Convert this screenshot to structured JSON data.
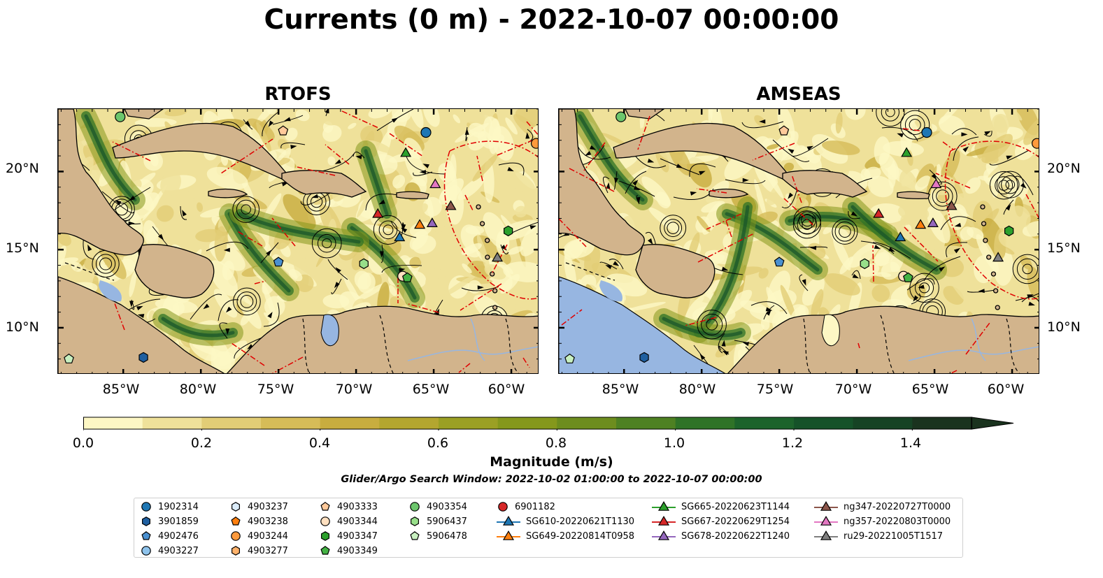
{
  "title": "Currents (0 m) - 2022-10-07 00:00:00",
  "panels": [
    {
      "title": "RTOFS"
    },
    {
      "title": "AMSEAS"
    }
  ],
  "axes": {
    "longitude_ticks": [
      "85°W",
      "80°W",
      "75°W",
      "70°W",
      "65°W",
      "60°W"
    ],
    "latitude_ticks": [
      "20°N",
      "15°N",
      "10°N"
    ]
  },
  "colorbar": {
    "label": "Magnitude (m/s)",
    "ticks": [
      "0.0",
      "0.2",
      "0.4",
      "0.6",
      "0.8",
      "1.0",
      "1.2",
      "1.4"
    ],
    "range": [
      0.0,
      1.5
    ],
    "step": 0.1,
    "extend": "max",
    "colors": [
      "#fdf7c4",
      "#efe19a",
      "#e2cd76",
      "#d6bc58",
      "#c8ad3f",
      "#b4a62f",
      "#9ba024",
      "#85981c",
      "#6d8d1e",
      "#4e8122",
      "#2f7327",
      "#1c632b",
      "#155229",
      "#164324",
      "#1a331e"
    ]
  },
  "search_window": "Glider/Argo Search Window: 2022-10-02 01:00:00 to 2022-10-07 00:00:00",
  "colors": {
    "land": "#d2b48c",
    "lake": "#97b6e1",
    "eez_boundary": "#e00000",
    "streamline": "#000000"
  },
  "legend": {
    "columns": [
      [
        {
          "label": "1902314",
          "marker": "circle",
          "color": "#1f77b4"
        },
        {
          "label": "3901859",
          "marker": "hexagon",
          "color": "#1f5fa0"
        },
        {
          "label": "4902476",
          "marker": "pentagon",
          "color": "#4a90d0"
        },
        {
          "label": "4903227",
          "marker": "circle",
          "color": "#8ec3ec"
        }
      ],
      [
        {
          "label": "4903237",
          "marker": "hexagon",
          "color": "#dbecfa"
        },
        {
          "label": "4903238",
          "marker": "pentagon",
          "color": "#ff7f0e"
        },
        {
          "label": "4903244",
          "marker": "circle",
          "color": "#ff9a3c"
        },
        {
          "label": "4903277",
          "marker": "hexagon",
          "color": "#ffb26b"
        }
      ],
      [
        {
          "label": "4903333",
          "marker": "pentagon",
          "color": "#ffc99a"
        },
        {
          "label": "4903344",
          "marker": "circle",
          "color": "#ffe0c0"
        },
        {
          "label": "4903347",
          "marker": "hexagon",
          "color": "#2ca02c"
        },
        {
          "label": "4903349",
          "marker": "pentagon",
          "color": "#44b244"
        }
      ],
      [
        {
          "label": "4903354",
          "marker": "circle",
          "color": "#6cc66c"
        },
        {
          "label": "5906437",
          "marker": "hexagon",
          "color": "#98df8a"
        },
        {
          "label": "5906478",
          "marker": "pentagon",
          "color": "#c8f0c0"
        }
      ],
      [
        {
          "label": "6901182",
          "marker": "circle",
          "color": "#d62728"
        },
        {
          "label": "SG610-20220621T1130",
          "marker": "triangle-line",
          "color": "#1f77b4"
        },
        {
          "label": "SG649-20220814T0958",
          "marker": "triangle-line",
          "color": "#ff7f0e"
        }
      ],
      [
        {
          "label": "SG665-20220623T1144",
          "marker": "triangle-line",
          "color": "#2ca02c"
        },
        {
          "label": "SG667-20220629T1254",
          "marker": "triangle-line",
          "color": "#d62728"
        },
        {
          "label": "SG678-20220622T1240",
          "marker": "triangle-line",
          "color": "#9467bd"
        }
      ],
      [
        {
          "label": "ng347-20220727T0000",
          "marker": "triangle-line",
          "color": "#8c564b"
        },
        {
          "label": "ng357-20220803T0000",
          "marker": "triangle-line",
          "color": "#e377c2"
        },
        {
          "label": "ru29-20221005T1517",
          "marker": "triangle-line",
          "color": "#7f7f7f"
        }
      ]
    ]
  },
  "platform_positions": [
    {
      "id": "4903354",
      "lon": -85.2,
      "lat": 23.5
    },
    {
      "id": "4903333",
      "lon": -74.7,
      "lat": 22.6
    },
    {
      "id": "1902314",
      "lon": -65.5,
      "lat": 22.5
    },
    {
      "id": "4903244",
      "lon": -58.4,
      "lat": 21.8
    },
    {
      "id": "SG665-20220623T1144",
      "lon": -66.8,
      "lat": 21.2
    },
    {
      "id": "ng357-20220803T0000",
      "lon": -64.9,
      "lat": 19.2
    },
    {
      "id": "ng347-20220727T0000",
      "lon": -63.9,
      "lat": 17.8
    },
    {
      "id": "SG667-20220629T1254",
      "lon": -68.6,
      "lat": 17.3
    },
    {
      "id": "SG649-20220814T0958",
      "lon": -65.9,
      "lat": 16.6
    },
    {
      "id": "SG678-20220622T1240",
      "lon": -65.1,
      "lat": 16.7
    },
    {
      "id": "4903347",
      "lon": -60.2,
      "lat": 16.2
    },
    {
      "id": "SG610-20220621T1130",
      "lon": -67.2,
      "lat": 15.8
    },
    {
      "id": "ru29-20221005T1517",
      "lon": -60.9,
      "lat": 14.5
    },
    {
      "id": "4902476",
      "lon": -75.0,
      "lat": 14.2
    },
    {
      "id": "5906437",
      "lon": -69.5,
      "lat": 14.1
    },
    {
      "id": "4903344",
      "lon": -67.0,
      "lat": 13.3
    },
    {
      "id": "4903349",
      "lon": -66.7,
      "lat": 13.2
    },
    {
      "id": "5906478",
      "lon": -88.5,
      "lat": 8.0
    },
    {
      "id": "3901859",
      "lon": -83.7,
      "lat": 8.1
    }
  ]
}
